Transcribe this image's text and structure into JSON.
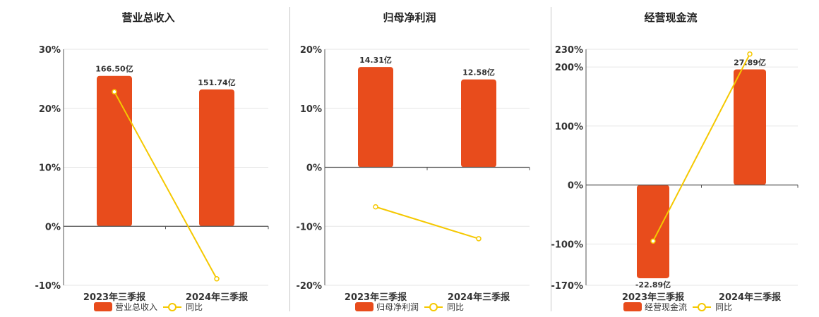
{
  "colors": {
    "bar": "#E84C1C",
    "line": "#F5C800",
    "grid": "#e6e6e6",
    "axis": "#555555"
  },
  "chart_data": [
    {
      "type": "bar",
      "title": "营业总收入",
      "categories": [
        "2023年三季报",
        "2024年三季报"
      ],
      "bar_values": [
        25.5,
        23.2
      ],
      "bar_labels": [
        "166.50亿",
        "151.74亿"
      ],
      "line_values": [
        22.8,
        -8.9
      ],
      "ylim": [
        -10,
        30
      ],
      "yticks": [
        -10,
        0,
        10,
        20,
        30
      ],
      "ytick_labels": [
        "-10%",
        "0%",
        "10%",
        "20%",
        "30%"
      ],
      "legend": [
        "营业总收入",
        "同比"
      ]
    },
    {
      "type": "bar",
      "title": "归母净利润",
      "categories": [
        "2023年三季报",
        "2024年三季报"
      ],
      "bar_values": [
        17.0,
        14.9
      ],
      "bar_labels": [
        "14.31亿",
        "12.58亿"
      ],
      "line_values": [
        -6.7,
        -12.1
      ],
      "ylim": [
        -20,
        20
      ],
      "yticks": [
        -20,
        -10,
        0,
        10,
        20
      ],
      "ytick_labels": [
        "-20%",
        "-10%",
        "0%",
        "10%",
        "20%"
      ],
      "legend": [
        "归母净利润",
        "同比"
      ]
    },
    {
      "type": "bar",
      "title": "经营现金流",
      "categories": [
        "2023年三季报",
        "2024年三季报"
      ],
      "bar_values": [
        -158,
        196
      ],
      "bar_labels": [
        "-22.89亿",
        "27.89亿"
      ],
      "line_values": [
        -95,
        222
      ],
      "ylim": [
        -170,
        230
      ],
      "yticks": [
        -170,
        -100,
        0,
        100,
        200,
        230
      ],
      "ytick_labels": [
        "-170%",
        "-100%",
        "0%",
        "100%",
        "200%",
        "230%"
      ],
      "legend": [
        "经营现金流",
        "同比"
      ]
    }
  ]
}
